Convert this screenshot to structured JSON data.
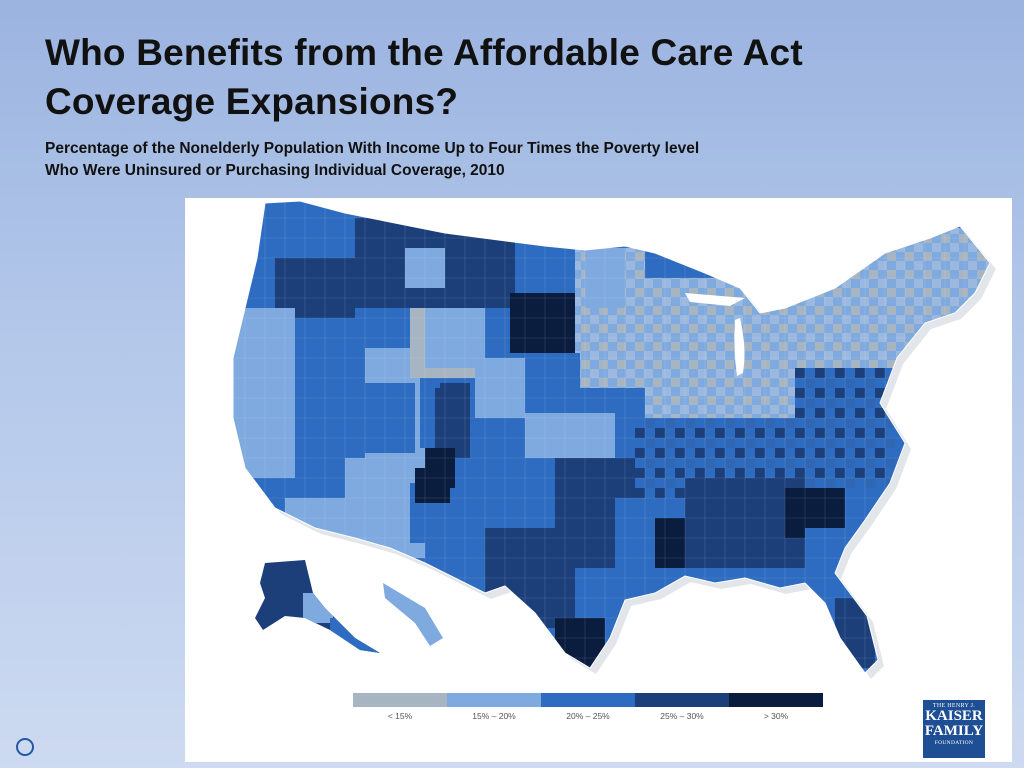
{
  "slide": {
    "title_line1": "Who Benefits from the Affordable Care Act",
    "title_line2": "Coverage Expansions?",
    "subtitle_line1": "Percentage of the Nonelderly Population With Income Up to Four Times the Poverty level",
    "subtitle_line2": "Who Were Uninsured or Purchasing Individual Coverage, 2010"
  },
  "legend": {
    "items": [
      {
        "label": "< 15%",
        "color": "#a7b4c2"
      },
      {
        "label": "15% – 20%",
        "color": "#7eaadf"
      },
      {
        "label": "20% – 25%",
        "color": "#2d6cc0"
      },
      {
        "label": "25% – 30%",
        "color": "#1c3f7a"
      },
      {
        "label": "> 30%",
        "color": "#0b1d3f"
      }
    ]
  },
  "logo": {
    "top": "THE HENRY J.",
    "line1": "KAISER",
    "line2": "FAMILY",
    "bottom": "FOUNDATION",
    "color": "#1e4e93"
  },
  "colors": {
    "lt15": "#a7b4c2",
    "c15_20": "#7eaadf",
    "c20_25": "#2d6cc0",
    "c25_30": "#1c3f7a",
    "gt30": "#0b1d3f"
  }
}
